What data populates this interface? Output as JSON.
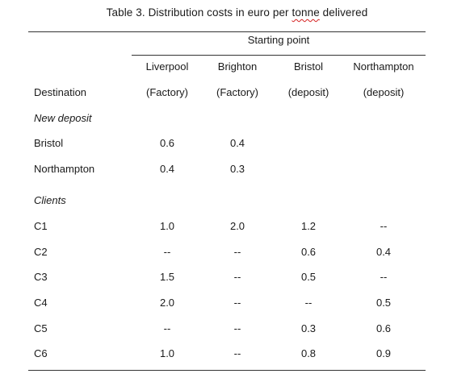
{
  "title": {
    "prefix": "Table 3. Distribution costs in euro per ",
    "flagged_word": "tonne",
    "suffix": " delivered"
  },
  "header": {
    "group_label": "Starting point",
    "row_header": "Destination",
    "columns": [
      {
        "name": "Liverpool",
        "type": "(Factory)"
      },
      {
        "name": "Brighton",
        "type": "(Factory)"
      },
      {
        "name": "Bristol",
        "type": "(deposit)"
      },
      {
        "name": "Northampton",
        "type": "(deposit)"
      }
    ]
  },
  "sections": [
    {
      "label": "New deposit",
      "rows": [
        {
          "destination": "Bristol",
          "values": [
            "0.6",
            "0.4",
            "",
            ""
          ]
        },
        {
          "destination": "Northampton",
          "values": [
            "0.4",
            "0.3",
            "",
            ""
          ]
        }
      ]
    },
    {
      "label": "Clients",
      "rows": [
        {
          "destination": "C1",
          "values": [
            "1.0",
            "2.0",
            "1.2",
            "--"
          ]
        },
        {
          "destination": "C2",
          "values": [
            "--",
            "--",
            "0.6",
            "0.4"
          ]
        },
        {
          "destination": "C3",
          "values": [
            "1.5",
            "--",
            "0.5",
            "--"
          ]
        },
        {
          "destination": "C4",
          "values": [
            "2.0",
            "--",
            "--",
            "0.5"
          ]
        },
        {
          "destination": "C5",
          "values": [
            "--",
            "--",
            "0.3",
            "0.6"
          ]
        },
        {
          "destination": "C6",
          "values": [
            "1.0",
            "--",
            "0.8",
            "0.9"
          ]
        }
      ]
    }
  ]
}
